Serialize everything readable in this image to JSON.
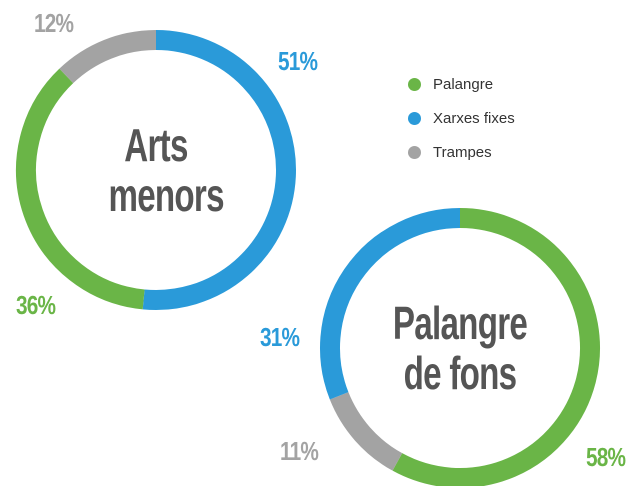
{
  "legend": [
    {
      "name": "Palangre",
      "color": "#6ab547"
    },
    {
      "name": "Xarxes fixes",
      "color": "#2a9ad9"
    },
    {
      "name": "Trampes",
      "color": "#a3a3a3"
    }
  ],
  "chart_data": [
    {
      "type": "donut",
      "title": "Arts menors",
      "categories": [
        "Xarxes fixes",
        "Palangre",
        "Trampes"
      ],
      "values": [
        51,
        36,
        12
      ],
      "value_labels": [
        "51%",
        "36%",
        "12%"
      ],
      "colors": [
        "#2a9ad9",
        "#6ab547",
        "#a3a3a3"
      ]
    },
    {
      "type": "donut",
      "title": "Palangre de fons",
      "categories": [
        "Palangre",
        "Trampes",
        "Xarxes fixes"
      ],
      "values": [
        58,
        11,
        31
      ],
      "value_labels": [
        "58%",
        "11%",
        "31%"
      ],
      "colors": [
        "#6ab547",
        "#a3a3a3",
        "#2a9ad9"
      ]
    }
  ]
}
